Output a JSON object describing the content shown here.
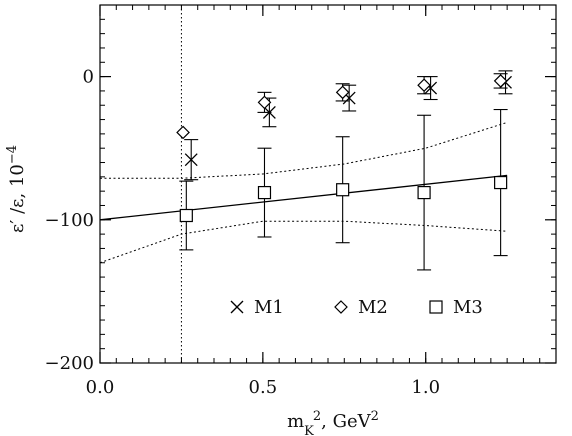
{
  "chart_data": {
    "type": "scatter",
    "xlabel_parts": {
      "base": "m",
      "sub": "K",
      "sup": "2",
      "sep": ", ",
      "unit": "GeV",
      "unit_sup": "2"
    },
    "ylabel_parts": {
      "lhs": "ε′ /ε, 10",
      "sup": "−4"
    },
    "xlim": [
      0.0,
      1.4
    ],
    "ylim": [
      -200,
      50
    ],
    "x_ticks": [
      {
        "value": 0.0,
        "label": "0.0"
      },
      {
        "value": 0.5,
        "label": "0.5"
      },
      {
        "value": 1.0,
        "label": "1.0"
      }
    ],
    "y_ticks": [
      {
        "value": 0,
        "label": "0"
      },
      {
        "value": -100,
        "label": "−100"
      },
      {
        "value": -200,
        "label": "−200"
      }
    ],
    "x_minor_step": 0.05,
    "y_minor_step": 10,
    "grid": false,
    "legend_position": "bottom-center",
    "reference_vertical_line_x": 0.25,
    "series": [
      {
        "name": "M1",
        "marker": "cross",
        "points": [
          {
            "x": 0.28,
            "y": -58,
            "err": 14
          },
          {
            "x": 0.52,
            "y": -25,
            "err": 10
          },
          {
            "x": 0.765,
            "y": -15,
            "err": 9
          },
          {
            "x": 1.015,
            "y": -8,
            "err": 8
          },
          {
            "x": 1.245,
            "y": -4,
            "err": 8
          }
        ]
      },
      {
        "name": "M2",
        "marker": "diamond",
        "points": [
          {
            "x": 0.255,
            "y": -39,
            "err": 0
          },
          {
            "x": 0.505,
            "y": -18,
            "err": 7
          },
          {
            "x": 0.745,
            "y": -11,
            "err": 6
          },
          {
            "x": 0.995,
            "y": -6,
            "err": 6
          },
          {
            "x": 1.23,
            "y": -3,
            "err": 5
          }
        ]
      },
      {
        "name": "M3",
        "marker": "square",
        "points": [
          {
            "x": 0.265,
            "y": -97,
            "err": 24
          },
          {
            "x": 0.505,
            "y": -81,
            "err": 31
          },
          {
            "x": 0.745,
            "y": -79,
            "err": 37
          },
          {
            "x": 0.995,
            "y": -81,
            "err": 54
          },
          {
            "x": 1.23,
            "y": -74,
            "err": 51
          }
        ]
      }
    ],
    "fit_line": {
      "x": [
        0.0,
        1.25
      ],
      "y": [
        -100,
        -69
      ]
    },
    "confidence_band_upper": {
      "x": [
        0.0,
        0.25,
        0.5,
        0.75,
        1.0,
        1.25
      ],
      "y": [
        -71,
        -71,
        -68,
        -61,
        -50,
        -32
      ]
    },
    "confidence_band_lower": {
      "x": [
        0.0,
        0.25,
        0.5,
        0.75,
        1.0,
        1.25
      ],
      "y": [
        -130,
        -110,
        -101,
        -101,
        -104,
        -108
      ]
    }
  }
}
